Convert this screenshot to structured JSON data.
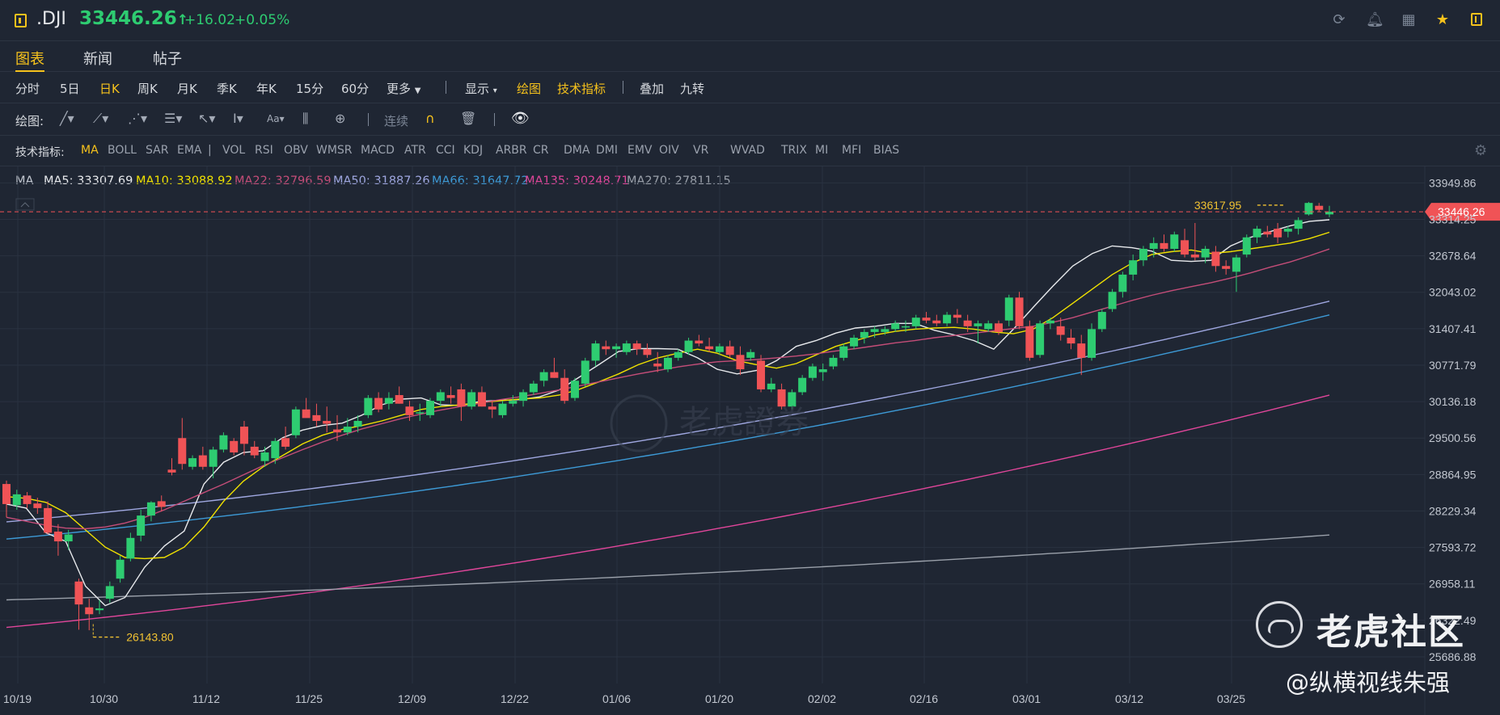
{
  "header": {
    "symbol": ".DJI",
    "price": "33446.26",
    "arrow": "↑",
    "change": "+16.02",
    "change_pct": "+0.05%",
    "icons": [
      "refresh-icon",
      "bell-icon",
      "grid-icon",
      "star-icon",
      "panel-icon"
    ]
  },
  "tabs": [
    "图表",
    "新闻",
    "帖子"
  ],
  "periods": [
    "分时",
    "5日",
    "日K",
    "周K",
    "月K",
    "季K",
    "年K",
    "15分",
    "60分",
    "更多"
  ],
  "period_active": "日K",
  "toolbar2": {
    "show": "显示",
    "draw": "绘图",
    "indicators": "技术指标",
    "overlay": "叠加",
    "nine": "九转"
  },
  "draw_tools": {
    "label": "绘图:",
    "continuous": "连续"
  },
  "indicator_bar": {
    "label": "技术指标:",
    "items": [
      "MA",
      "BOLL",
      "SAR",
      "EMA",
      "|",
      "VOL",
      "RSI",
      "OBV",
      "WMSR",
      "MACD",
      "ATR",
      "CCI",
      "KDJ",
      "ARBR",
      "CR",
      "DMA",
      "DMI",
      "EMV",
      "OIV",
      "VR",
      "WVAD",
      "TRIX",
      "MI",
      "MFI",
      "BIAS"
    ]
  },
  "ma_legend": [
    {
      "text": "MA",
      "color": "#c3c8d1"
    },
    {
      "text": "MA5: 33307.69",
      "color": "#e8eaed"
    },
    {
      "text": "MA10: 33088.92",
      "color": "#f1e200"
    },
    {
      "text": "MA22: 32796.59",
      "color": "#c44d78"
    },
    {
      "text": "MA50: 31887.26",
      "color": "#9fa7e0"
    },
    {
      "text": "MA66: 31647.72",
      "color": "#3d9ad6"
    },
    {
      "text": "MA135: 30248.71",
      "color": "#e0469a"
    },
    {
      "text": "MA270: 27811.15",
      "color": "#9aa0aa"
    }
  ],
  "watermark": {
    "logo": "老虎社区",
    "author": "@纵横视线朱强",
    "center": "老虎證券"
  },
  "chart_data": {
    "type": "candlestick",
    "ylim": [
      25500,
      34200
    ],
    "y_ticks": [
      33949.86,
      33314.25,
      32678.64,
      32043.02,
      31407.41,
      30771.79,
      30136.18,
      29500.56,
      28864.95,
      28229.34,
      27593.72,
      26958.11,
      26322.49,
      25686.88
    ],
    "x_tick_labels": [
      "10/19",
      "10/30",
      "11/12",
      "11/25",
      "12/09",
      "12/22",
      "01/06",
      "01/20",
      "02/02",
      "02/16",
      "03/01",
      "03/12",
      "03/25"
    ],
    "last_price": 33446.26,
    "high_marker": {
      "label": "33617.95",
      "value": 33617.95
    },
    "low_marker": {
      "label": "26143.80",
      "value": 26143.8
    },
    "colors": {
      "up": "#2ecc71",
      "down": "#f05356"
    },
    "candles": [
      [
        28700,
        28760,
        28120,
        28350
      ],
      [
        28330,
        28600,
        28250,
        28520
      ],
      [
        28500,
        28560,
        28280,
        28350
      ],
      [
        28360,
        28460,
        28180,
        28280
      ],
      [
        28280,
        28400,
        27820,
        27850
      ],
      [
        27870,
        28000,
        27450,
        27700
      ],
      [
        27700,
        27900,
        27550,
        27820
      ],
      [
        27000,
        27050,
        26160,
        26600
      ],
      [
        26550,
        26700,
        26150,
        26430
      ],
      [
        26500,
        26680,
        26430,
        26530
      ],
      [
        26700,
        27000,
        26630,
        26920
      ],
      [
        27050,
        27450,
        26980,
        27380
      ],
      [
        27400,
        27850,
        27350,
        27760
      ],
      [
        27800,
        28250,
        27700,
        28150
      ],
      [
        28150,
        28400,
        28050,
        28380
      ],
      [
        28400,
        28500,
        28220,
        28300
      ],
      [
        28950,
        29150,
        28850,
        28900
      ],
      [
        29500,
        29850,
        28950,
        29050
      ],
      [
        29000,
        29200,
        28950,
        29150
      ],
      [
        29200,
        29350,
        28950,
        29000
      ],
      [
        29000,
        29350,
        28800,
        29300
      ],
      [
        29300,
        29600,
        29250,
        29550
      ],
      [
        29450,
        29500,
        29200,
        29250
      ],
      [
        29700,
        29800,
        29200,
        29400
      ],
      [
        29350,
        29450,
        29150,
        29200
      ],
      [
        29100,
        29350,
        29000,
        29250
      ],
      [
        29150,
        29500,
        29050,
        29450
      ],
      [
        29500,
        29700,
        29300,
        29350
      ],
      [
        29550,
        30050,
        29500,
        30000
      ],
      [
        30000,
        30200,
        29900,
        29850
      ],
      [
        29900,
        30100,
        29700,
        29800
      ],
      [
        29800,
        30050,
        29600,
        29750
      ],
      [
        29650,
        29900,
        29450,
        29600
      ],
      [
        29600,
        29850,
        29550,
        29700
      ],
      [
        29700,
        29900,
        29600,
        29800
      ],
      [
        29900,
        30250,
        29850,
        30200
      ],
      [
        30200,
        30300,
        29950,
        30000
      ],
      [
        30100,
        30300,
        30000,
        30200
      ],
      [
        30250,
        30400,
        30100,
        30100
      ],
      [
        30050,
        30150,
        29800,
        29900
      ],
      [
        29950,
        30100,
        29800,
        29950
      ],
      [
        29900,
        30200,
        29850,
        30150
      ],
      [
        30150,
        30350,
        30050,
        30300
      ],
      [
        30250,
        30400,
        30100,
        30200
      ],
      [
        30350,
        30450,
        29800,
        30050
      ],
      [
        30050,
        30350,
        30000,
        30300
      ],
      [
        30300,
        30400,
        30050,
        30050
      ],
      [
        30050,
        30150,
        29850,
        30000
      ],
      [
        29900,
        30150,
        29850,
        30100
      ],
      [
        30100,
        30250,
        30050,
        30150
      ],
      [
        30150,
        30350,
        30050,
        30300
      ],
      [
        30300,
        30500,
        30250,
        30450
      ],
      [
        30500,
        30700,
        30400,
        30650
      ],
      [
        30650,
        30900,
        30550,
        30550
      ],
      [
        30550,
        30700,
        30100,
        30150
      ],
      [
        30200,
        30550,
        30150,
        30500
      ],
      [
        30450,
        30900,
        30400,
        30850
      ],
      [
        30850,
        31200,
        30750,
        31150
      ],
      [
        31100,
        31200,
        30950,
        31050
      ],
      [
        31050,
        31150,
        30900,
        31100
      ],
      [
        31000,
        31200,
        30950,
        31150
      ],
      [
        31150,
        31200,
        30950,
        31050
      ],
      [
        31050,
        31150,
        30900,
        30950
      ],
      [
        30800,
        31000,
        30650,
        30750
      ],
      [
        30700,
        30950,
        30650,
        30900
      ],
      [
        30900,
        31050,
        30850,
        31000
      ],
      [
        31000,
        31250,
        30950,
        31200
      ],
      [
        31200,
        31300,
        31100,
        31150
      ],
      [
        31100,
        31250,
        31000,
        31050
      ],
      [
        31000,
        31150,
        30950,
        31100
      ],
      [
        31100,
        31200,
        30900,
        30950
      ],
      [
        30950,
        31100,
        30600,
        30700
      ],
      [
        30900,
        31050,
        30850,
        31000
      ],
      [
        30850,
        30950,
        30300,
        30350
      ],
      [
        30350,
        30550,
        30300,
        30450
      ],
      [
        30350,
        30450,
        30000,
        30050
      ],
      [
        30050,
        30350,
        30000,
        30300
      ],
      [
        30300,
        30600,
        30250,
        30550
      ],
      [
        30550,
        30800,
        30500,
        30750
      ],
      [
        30650,
        30800,
        30500,
        30700
      ],
      [
        30750,
        30950,
        30700,
        30900
      ],
      [
        30900,
        31150,
        30850,
        31100
      ],
      [
        31100,
        31300,
        31050,
        31250
      ],
      [
        31250,
        31400,
        31150,
        31350
      ],
      [
        31350,
        31450,
        31250,
        31400
      ],
      [
        31350,
        31450,
        31300,
        31400
      ],
      [
        31400,
        31550,
        31350,
        31500
      ],
      [
        31450,
        31550,
        31350,
        31450
      ],
      [
        31450,
        31650,
        31400,
        31600
      ],
      [
        31600,
        31700,
        31500,
        31550
      ],
      [
        31550,
        31650,
        31450,
        31500
      ],
      [
        31500,
        31700,
        31450,
        31650
      ],
      [
        31650,
        31750,
        31500,
        31600
      ],
      [
        31550,
        31650,
        31350,
        31450
      ],
      [
        31450,
        31550,
        31150,
        31500
      ],
      [
        31400,
        31550,
        31350,
        31500
      ],
      [
        31500,
        31550,
        31300,
        31350
      ],
      [
        31550,
        32000,
        31450,
        31950
      ],
      [
        31950,
        32050,
        31400,
        31450
      ],
      [
        31450,
        31550,
        30850,
        30900
      ],
      [
        30950,
        31550,
        30900,
        31500
      ],
      [
        31500,
        31600,
        31400,
        31550
      ],
      [
        31450,
        31600,
        31200,
        31300
      ],
      [
        31250,
        31400,
        31050,
        31150
      ],
      [
        31150,
        31300,
        30600,
        30900
      ],
      [
        30900,
        31500,
        30850,
        31400
      ],
      [
        31400,
        31750,
        31350,
        31700
      ],
      [
        31750,
        32100,
        31700,
        32050
      ],
      [
        32050,
        32400,
        31950,
        32350
      ],
      [
        32350,
        32700,
        32250,
        32600
      ],
      [
        32600,
        32850,
        32500,
        32800
      ],
      [
        32800,
        33000,
        32650,
        32900
      ],
      [
        32900,
        33050,
        32750,
        32800
      ],
      [
        32800,
        33100,
        32750,
        33050
      ],
      [
        32950,
        33150,
        32650,
        32700
      ],
      [
        32700,
        33250,
        32600,
        32650
      ],
      [
        32650,
        32850,
        32550,
        32800
      ],
      [
        32750,
        32850,
        32400,
        32500
      ],
      [
        32500,
        32600,
        32350,
        32450
      ],
      [
        32400,
        32700,
        32050,
        32650
      ],
      [
        32700,
        33050,
        32650,
        33000
      ],
      [
        33000,
        33200,
        32900,
        33150
      ],
      [
        33100,
        33200,
        33000,
        33050
      ],
      [
        33150,
        33250,
        32900,
        33000
      ],
      [
        33100,
        33200,
        33000,
        33150
      ],
      [
        33150,
        33350,
        33050,
        33300
      ],
      [
        33400,
        33618,
        33380,
        33600
      ],
      [
        33550,
        33600,
        33450,
        33480
      ],
      [
        33400,
        33550,
        33350,
        33446
      ]
    ],
    "ma_lines": {
      "MA5": {
        "color": "#e8eaed",
        "values": [
          28350,
          28280,
          27850,
          27700,
          26920,
          26580,
          26720,
          27250,
          27620,
          27880,
          28700,
          29080,
          29250,
          29280,
          29510,
          29640,
          29720,
          29760,
          29900,
          30080,
          30180,
          30200,
          30080,
          30070,
          30140,
          30160,
          30170,
          30220,
          30340,
          30560,
          30780,
          31010,
          31060,
          31060,
          31050,
          30900,
          30700,
          30620,
          30680,
          30850,
          31100,
          31200,
          31330,
          31420,
          31450,
          31500,
          31500,
          31380,
          31300,
          31200,
          31050,
          31400,
          31780,
          32150,
          32500,
          32720,
          32850,
          32820,
          32760,
          32600,
          32580,
          32600,
          32850,
          33000,
          33100,
          33200,
          33280,
          33307
        ]
      },
      "MA10": {
        "color": "#f1e200",
        "values": [
          28480,
          28450,
          28380,
          28200,
          27900,
          27600,
          27420,
          27400,
          27420,
          27600,
          27950,
          28400,
          28750,
          29000,
          29200,
          29400,
          29550,
          29650,
          29720,
          29800,
          29900,
          30000,
          30050,
          30080,
          30120,
          30150,
          30180,
          30200,
          30250,
          30350,
          30480,
          30620,
          30780,
          30900,
          30980,
          31050,
          30980,
          30850,
          30780,
          30720,
          30800,
          30950,
          31100,
          31200,
          31300,
          31360,
          31400,
          31420,
          31430,
          31400,
          31350,
          31320,
          31400,
          31600,
          31850,
          32100,
          32350,
          32550,
          32700,
          32750,
          32780,
          32720,
          32750,
          32800,
          32850,
          32900,
          32980,
          33088
        ]
      },
      "MA22": {
        "color": "#c44d78",
        "values": [
          28120,
          28050,
          27980,
          27930,
          27920,
          27950,
          28020,
          28120,
          28250,
          28400,
          28550,
          28700,
          28860,
          29020,
          29160,
          29300,
          29430,
          29550,
          29660,
          29750,
          29840,
          29920,
          29990,
          30050,
          30110,
          30170,
          30220,
          30280,
          30340,
          30410,
          30480,
          30550,
          30620,
          30680,
          30740,
          30790,
          30830,
          30850,
          30870,
          30900,
          30930,
          30970,
          31020,
          31060,
          31110,
          31160,
          31200,
          31250,
          31290,
          31330,
          31370,
          31410,
          31450,
          31520,
          31600,
          31700,
          31800,
          31900,
          31990,
          32070,
          32140,
          32210,
          32290,
          32380,
          32480,
          32570,
          32680,
          32797
        ]
      }
    },
    "smooth_lines": {
      "MA50": {
        "color": "#9fa7e0",
        "start": 28040,
        "end": 31887
      },
      "MA66": {
        "color": "#3d9ad6",
        "start": 27740,
        "end": 31648
      },
      "MA135": {
        "color": "#e0469a",
        "start": 26200,
        "end": 30249
      },
      "MA270": {
        "color": "#9aa0aa",
        "start": 26680,
        "end": 27811
      }
    }
  }
}
